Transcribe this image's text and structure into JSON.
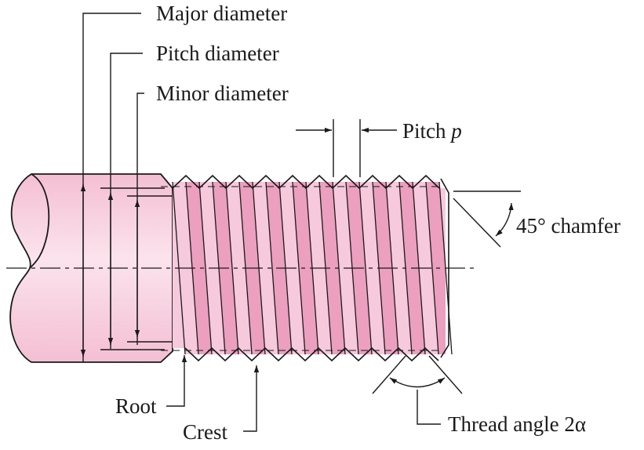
{
  "figure": {
    "colors": {
      "shaft": "#f4bfd3",
      "shaft_highlight": "#fbe3ec",
      "thread_face_light": "#f7c9dc",
      "thread_face_dark": "#ec9fbf",
      "outline": "#1a1a1a"
    },
    "labels": {
      "major_diameter": "Major diameter",
      "pitch_diameter": "Pitch diameter",
      "minor_diameter": "Minor diameter",
      "pitch_prefix": "Pitch ",
      "pitch_symbol": "p",
      "chamfer": "45° chamfer",
      "root": "Root",
      "crest": "Crest",
      "thread_angle": "Thread angle 2α"
    }
  }
}
